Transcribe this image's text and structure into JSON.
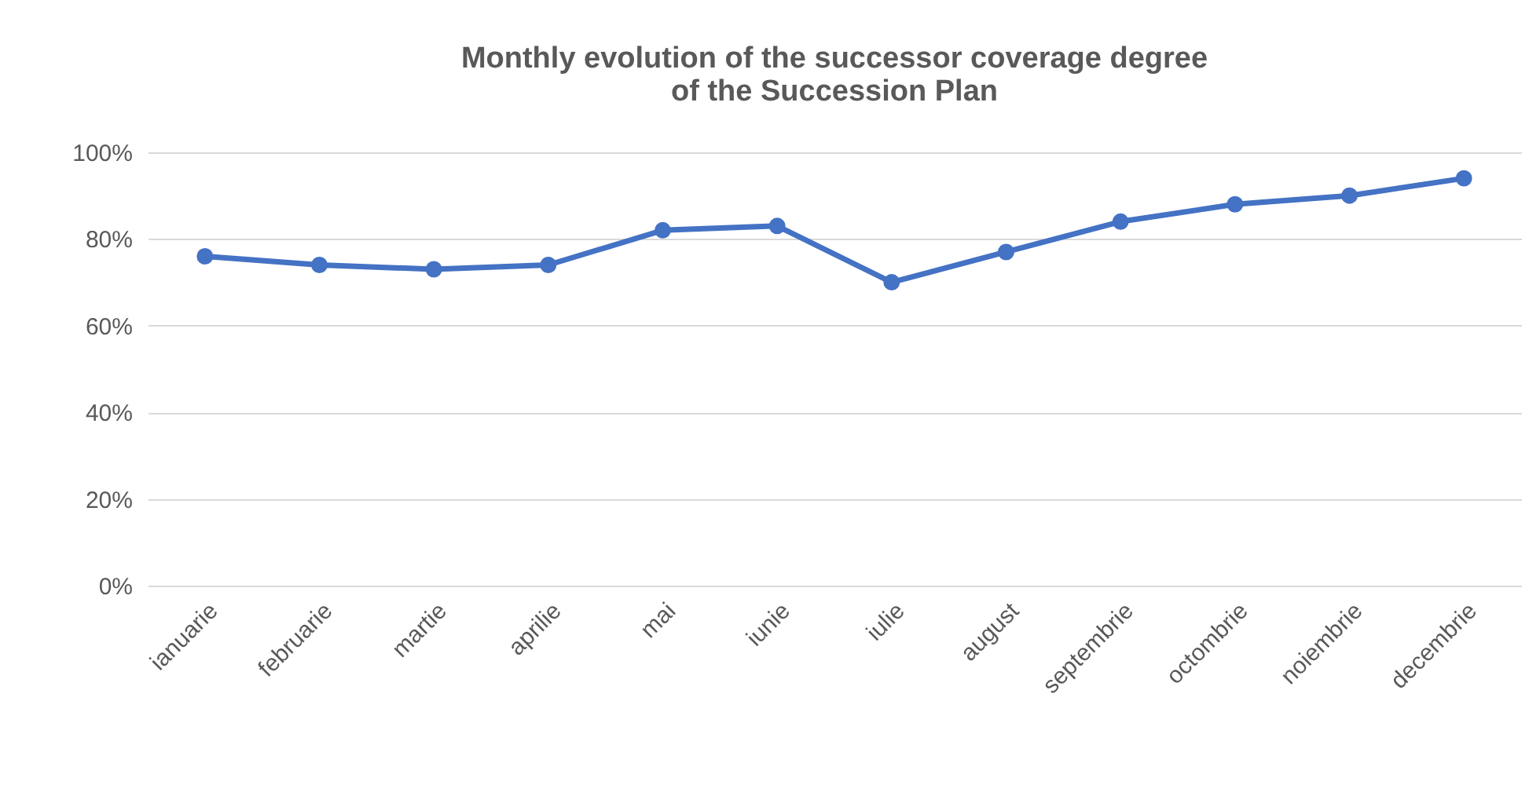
{
  "chart_data": {
    "type": "line",
    "title": "Monthly evolution of the successor coverage degree\nof the Succession Plan",
    "categories": [
      "ianuarie",
      "februarie",
      "martie",
      "aprilie",
      "mai",
      "iunie",
      "iulie",
      "august",
      "septembrie",
      "octombrie",
      "noiembrie",
      "decembrie"
    ],
    "series": [
      {
        "color": "#4472c4",
        "values": [
          76,
          74,
          73,
          74,
          82,
          83,
          70,
          77,
          84,
          88,
          90,
          94
        ]
      }
    ],
    "ylim": [
      0,
      100
    ],
    "yticks": [
      {
        "value": 0,
        "label": "0%"
      },
      {
        "value": 20,
        "label": "20%"
      },
      {
        "value": 40,
        "label": "40%"
      },
      {
        "value": 60,
        "label": "60%"
      },
      {
        "value": 80,
        "label": "80%"
      },
      {
        "value": 100,
        "label": "100%"
      }
    ],
    "grid": "y",
    "marker": "circle",
    "line_style": "solid"
  }
}
